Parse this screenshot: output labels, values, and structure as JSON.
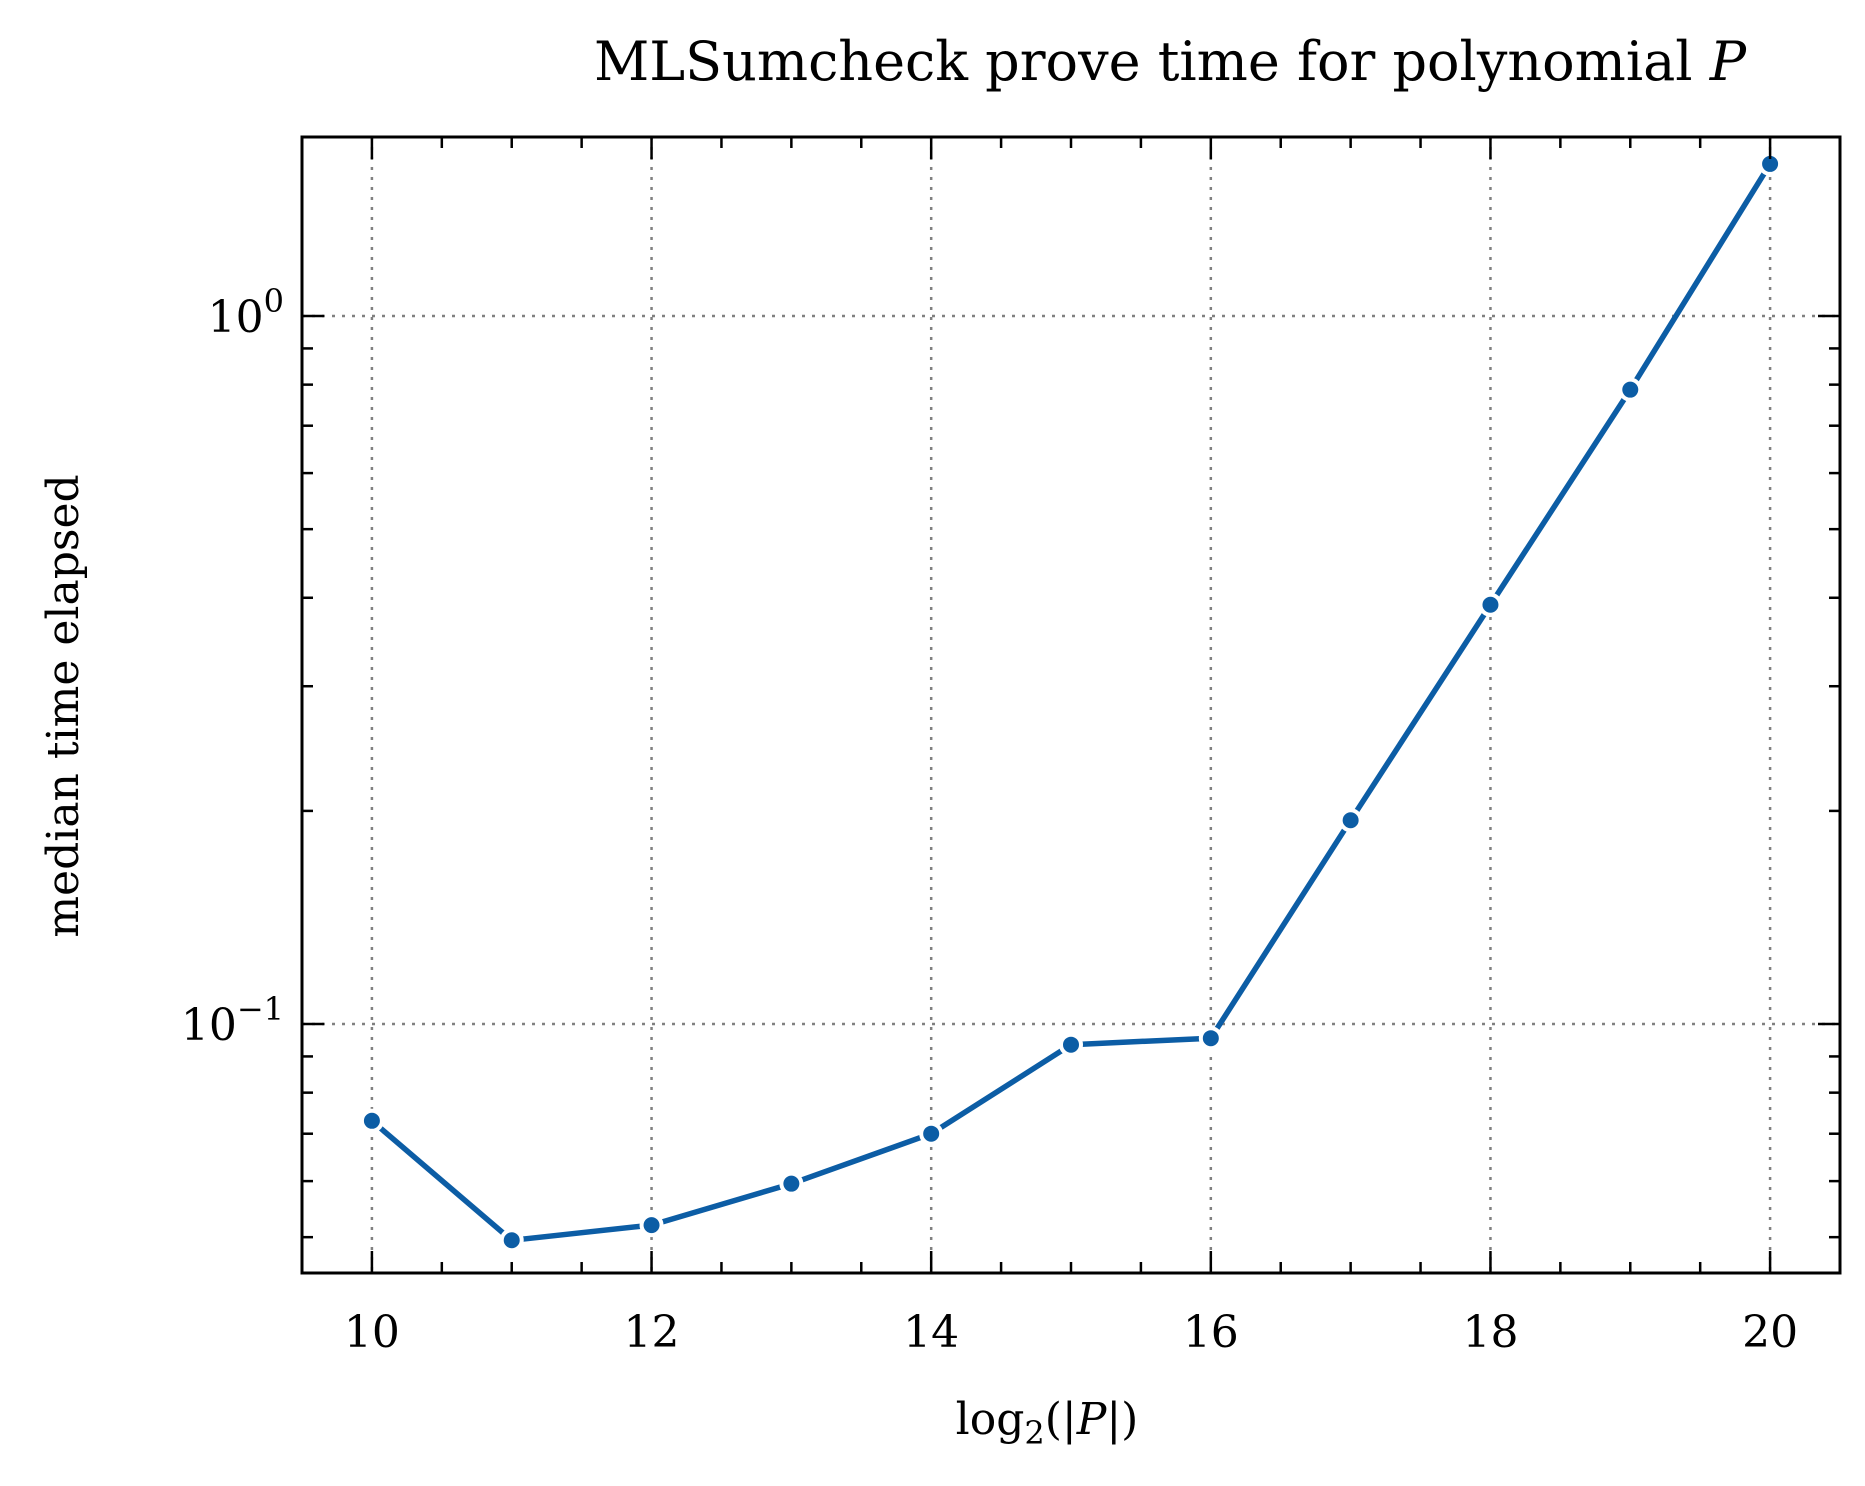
{
  "chart_data": {
    "type": "line",
    "title_main": "MLSumcheck prove time for polynomial ",
    "title_var": "P",
    "xlabel": "log",
    "xlabel_sub": "2",
    "xlabel_open": "(|",
    "xlabel_var": "P",
    "xlabel_close": "|)",
    "ylabel": "median time elapsed",
    "y_scale": "log",
    "xlim": [
      9.5,
      20.5
    ],
    "ylim": [
      0.0445,
      1.79
    ],
    "grid": true,
    "x_ticks": [
      10,
      12,
      14,
      16,
      18,
      20
    ],
    "x_minor_ticks": [
      10.5,
      11,
      11.5,
      12.5,
      13,
      13.5,
      14.5,
      15,
      15.5,
      16.5,
      17,
      17.5,
      18.5,
      19,
      19.5,
      20.5
    ],
    "y_ticks": [
      {
        "value": 0.1,
        "base": "10",
        "exp": "−1"
      },
      {
        "value": 1,
        "base": "10",
        "exp": "0"
      }
    ],
    "y_minor_ticks": [
      0.05,
      0.06,
      0.07,
      0.08,
      0.09,
      0.2,
      0.3,
      0.4,
      0.5,
      0.6,
      0.7,
      0.8,
      0.9
    ],
    "series": [
      {
        "color": "#0C5DA5",
        "x": [
          10,
          11,
          12,
          13,
          14,
          15,
          16,
          17,
          18,
          19,
          20
        ],
        "y": [
          0.073,
          0.0495,
          0.052,
          0.0595,
          0.07,
          0.0935,
          0.0955,
          0.194,
          0.391,
          0.787,
          1.64
        ]
      }
    ]
  }
}
